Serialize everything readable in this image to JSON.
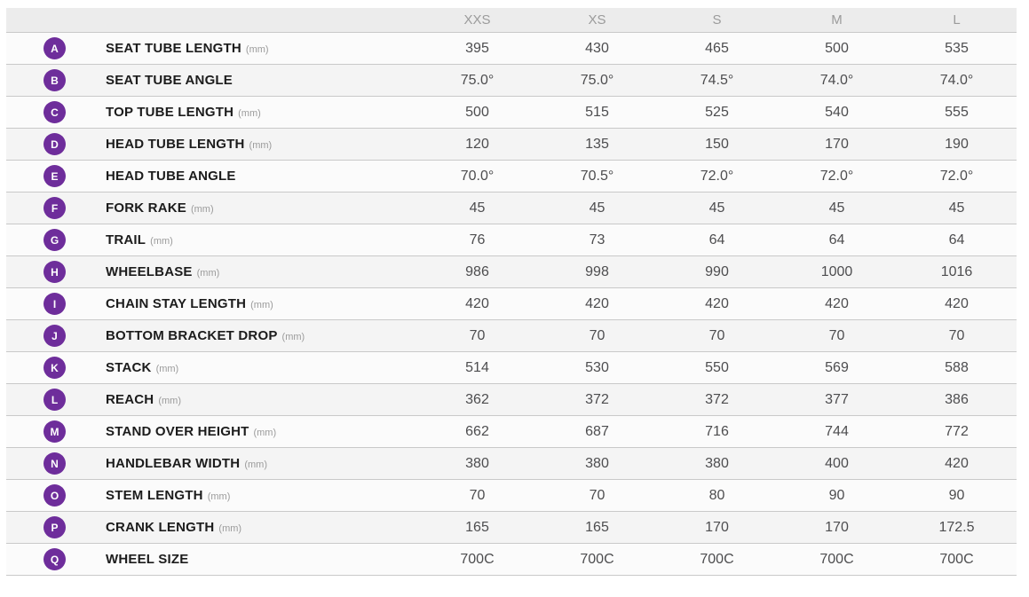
{
  "table": {
    "sizes": [
      "XXS",
      "XS",
      "S",
      "M",
      "L"
    ],
    "rows": [
      {
        "letter": "A",
        "label": "SEAT TUBE LENGTH",
        "unit": "(mm)",
        "values": [
          "395",
          "430",
          "465",
          "500",
          "535"
        ]
      },
      {
        "letter": "B",
        "label": "SEAT TUBE ANGLE",
        "unit": "",
        "values": [
          "75.0°",
          "75.0°",
          "74.5°",
          "74.0°",
          "74.0°"
        ]
      },
      {
        "letter": "C",
        "label": "TOP TUBE LENGTH",
        "unit": "(mm)",
        "values": [
          "500",
          "515",
          "525",
          "540",
          "555"
        ]
      },
      {
        "letter": "D",
        "label": "HEAD TUBE LENGTH",
        "unit": "(mm)",
        "values": [
          "120",
          "135",
          "150",
          "170",
          "190"
        ]
      },
      {
        "letter": "E",
        "label": "HEAD TUBE ANGLE",
        "unit": "",
        "values": [
          "70.0°",
          "70.5°",
          "72.0°",
          "72.0°",
          "72.0°"
        ]
      },
      {
        "letter": "F",
        "label": "FORK RAKE",
        "unit": "(mm)",
        "values": [
          "45",
          "45",
          "45",
          "45",
          "45"
        ]
      },
      {
        "letter": "G",
        "label": "TRAIL",
        "unit": "(mm)",
        "values": [
          "76",
          "73",
          "64",
          "64",
          "64"
        ]
      },
      {
        "letter": "H",
        "label": "WHEELBASE",
        "unit": "(mm)",
        "values": [
          "986",
          "998",
          "990",
          "1000",
          "1016"
        ]
      },
      {
        "letter": "I",
        "label": "CHAIN STAY LENGTH",
        "unit": "(mm)",
        "values": [
          "420",
          "420",
          "420",
          "420",
          "420"
        ]
      },
      {
        "letter": "J",
        "label": "BOTTOM BRACKET DROP",
        "unit": "(mm)",
        "values": [
          "70",
          "70",
          "70",
          "70",
          "70"
        ]
      },
      {
        "letter": "K",
        "label": "STACK",
        "unit": "(mm)",
        "values": [
          "514",
          "530",
          "550",
          "569",
          "588"
        ]
      },
      {
        "letter": "L",
        "label": "REACH",
        "unit": "(mm)",
        "values": [
          "362",
          "372",
          "372",
          "377",
          "386"
        ]
      },
      {
        "letter": "M",
        "label": "STAND OVER HEIGHT",
        "unit": "(mm)",
        "values": [
          "662",
          "687",
          "716",
          "744",
          "772"
        ]
      },
      {
        "letter": "N",
        "label": "HANDLEBAR WIDTH",
        "unit": "(mm)",
        "values": [
          "380",
          "380",
          "380",
          "400",
          "420"
        ]
      },
      {
        "letter": "O",
        "label": "STEM LENGTH",
        "unit": "(mm)",
        "values": [
          "70",
          "70",
          "80",
          "90",
          "90"
        ]
      },
      {
        "letter": "P",
        "label": "CRANK LENGTH",
        "unit": "(mm)",
        "values": [
          "165",
          "165",
          "170",
          "170",
          "172.5"
        ]
      },
      {
        "letter": "Q",
        "label": "WHEEL SIZE",
        "unit": "",
        "values": [
          "700C",
          "700C",
          "700C",
          "700C",
          "700C"
        ]
      }
    ]
  },
  "colors": {
    "badge_purple": "#6e2d9b",
    "header_bg": "#ececec",
    "row_alt_bg": "#f4f4f4"
  }
}
